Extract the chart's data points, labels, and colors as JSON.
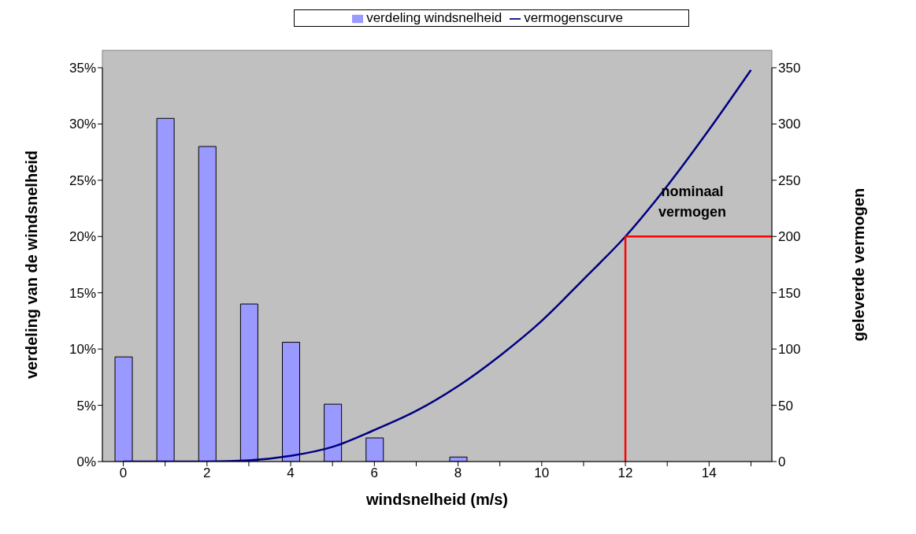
{
  "chart_data": {
    "type": "bar",
    "xlabel": "windsnelheid (m/s)",
    "ylabel": "verdeling van de windsnelheid",
    "y2label": "geleverde vermogen",
    "categories": [
      "0",
      null,
      "2",
      null,
      "4",
      null,
      "6",
      null,
      "8",
      null,
      "10",
      null,
      "12",
      null,
      "14",
      null
    ],
    "series": [
      {
        "name": "verdeling windsnelheid",
        "color": "#9999ff",
        "values": [
          9.3,
          30.5,
          28,
          14,
          10.6,
          5.1,
          2.1,
          0,
          0.4,
          0,
          0,
          0,
          0,
          0,
          0,
          null
        ]
      },
      {
        "name": "vermogenscurve",
        "type": "line",
        "axis": "y2",
        "color": "#000080",
        "values": [
          0,
          0,
          0,
          1,
          5,
          13,
          28,
          45,
          67,
          94,
          125,
          162,
          200,
          245,
          295,
          348
        ]
      }
    ],
    "ylim": [
      0,
      35
    ],
    "yticks": [
      {
        "value": 0,
        "label": "0%"
      },
      {
        "value": 5,
        "label": "5%"
      },
      {
        "value": 10,
        "label": "10%"
      },
      {
        "value": 15,
        "label": "15%"
      },
      {
        "value": 20,
        "label": "20%"
      },
      {
        "value": 25,
        "label": "25%"
      },
      {
        "value": 30,
        "label": "30%"
      },
      {
        "value": 35,
        "label": "35%"
      }
    ],
    "y2lim": [
      0,
      350
    ],
    "y2ticks": [
      0,
      50,
      100,
      150,
      200,
      250,
      300,
      350
    ],
    "ref_lines": [
      {
        "axis": "x",
        "value": "12",
        "color": "#ff0000"
      },
      {
        "axis": "y2",
        "value": 200,
        "color": "#ff0000"
      }
    ],
    "annotations": [
      "nominaal vermogen"
    ],
    "grid": false,
    "legend": "top",
    "marker": "none",
    "line_style": "solid"
  }
}
